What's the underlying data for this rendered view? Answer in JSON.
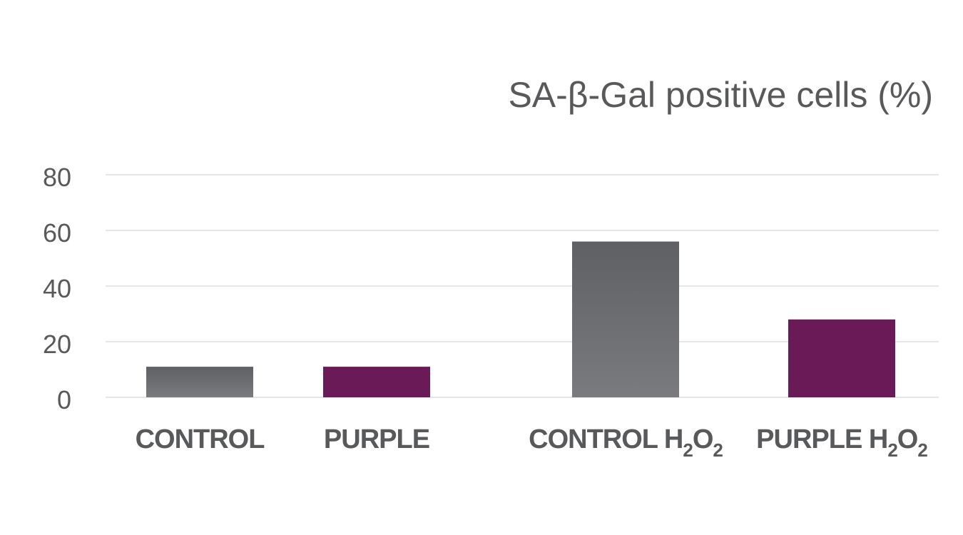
{
  "chart_data": {
    "type": "bar",
    "title": "SA-β-Gal positive cells (%)",
    "xlabel": "",
    "ylabel": "",
    "ylim": [
      0,
      80
    ],
    "yticks": [
      0,
      20,
      40,
      60,
      80
    ],
    "grid": true,
    "legend": "none",
    "categories": [
      {
        "main": "CONTROL",
        "formula": []
      },
      {
        "main": "PURPLE",
        "formula": []
      },
      {
        "main": "CONTROL",
        "formula": [
          {
            "t": "H"
          },
          {
            "t": "2",
            "sub": true
          },
          {
            "t": "O"
          },
          {
            "t": "2",
            "sub": true
          }
        ]
      },
      {
        "main": "PURPLE",
        "formula": [
          {
            "t": "H"
          },
          {
            "t": "2",
            "sub": true
          },
          {
            "t": "O"
          },
          {
            "t": "2",
            "sub": true
          }
        ]
      }
    ],
    "values": [
      11,
      11,
      56,
      28
    ],
    "colors": [
      "#6d6e71",
      "#6a1b57",
      "#6d6e71",
      "#6a1b57"
    ],
    "gray_gradient": [
      "#5f6064",
      "#7a7b7f"
    ]
  }
}
